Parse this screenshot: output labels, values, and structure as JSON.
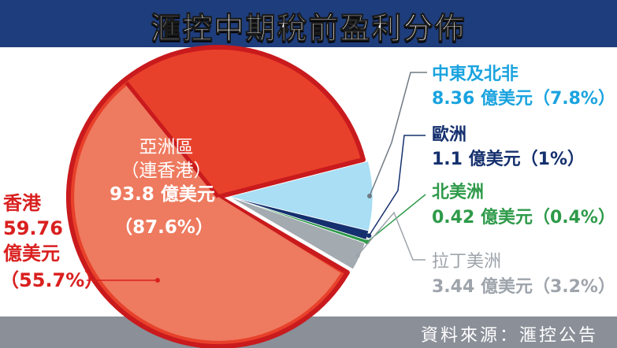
{
  "title": "滙控中期稅前盈利分佈",
  "source": "資料來源：滙控公告",
  "colors": {
    "title_bg": "#1e3d7c",
    "footer_bg": "#8a8f98",
    "asia": "#e8412b",
    "hongkong": "#ee7a5f",
    "mena": "#a9def4",
    "europe": "#15306e",
    "north_america": "#2e9a49",
    "latin_america": "#a3aab0",
    "outline": "#c91a1d"
  },
  "chart_data": {
    "type": "pie",
    "title": "滙控中期稅前盈利分佈",
    "unit": "億美元",
    "slices": [
      {
        "key": "asia",
        "name": "亞洲區",
        "sub": "（連香港）",
        "value": 93.8,
        "percent": 87.6
      },
      {
        "key": "mena",
        "name": "中東及北非",
        "value": 8.36,
        "percent": 7.8
      },
      {
        "key": "europe",
        "name": "歐洲",
        "value": 1.1,
        "percent": 1
      },
      {
        "key": "north_america",
        "name": "北美洲",
        "value": 0.42,
        "percent": 0.4
      },
      {
        "key": "latin_america",
        "name": "拉丁美洲",
        "value": 3.44,
        "percent": 3.2
      }
    ],
    "sub_slice": {
      "key": "hongkong",
      "name": "香港",
      "parent": "亞洲區",
      "value": 59.76,
      "percent": 55.7
    }
  },
  "labels": {
    "asia": {
      "line1": "亞洲區",
      "line2": "（連香港）",
      "line3": "93.8 億美元",
      "line4": "（87.6%）"
    },
    "hongkong": {
      "line1": "香港",
      "line2": "59.76",
      "line3": "億美元",
      "line4": "（55.7%）"
    },
    "mena": {
      "line1": "中東及北非",
      "line2": "8.36 億美元（7.8%）"
    },
    "europe": {
      "line1": "歐洲",
      "line2": "1.1 億美元（1%）"
    },
    "north_america": {
      "line1": "北美洲",
      "line2": "0.42 億美元（0.4%）"
    },
    "latin_america": {
      "line1": "拉丁美洲",
      "line2": "3.44 億美元（3.2%）"
    }
  }
}
